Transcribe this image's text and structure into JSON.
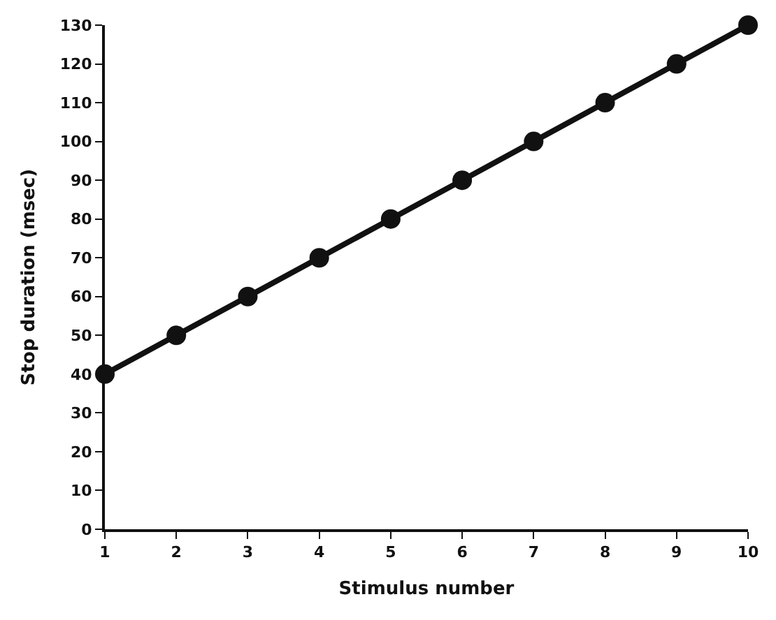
{
  "chart_data": {
    "type": "line",
    "xlabel": "Stimulus number",
    "ylabel": "Stop duration (msec)",
    "x": [
      1,
      2,
      3,
      4,
      5,
      6,
      7,
      8,
      9,
      10
    ],
    "series": [
      {
        "color": "#111111",
        "values": [
          40,
          50,
          60,
          70,
          80,
          90,
          100,
          110,
          120,
          130
        ]
      }
    ],
    "xlim": [
      1,
      10
    ],
    "xticks": [
      1,
      2,
      3,
      4,
      5,
      6,
      7,
      8,
      9,
      10
    ],
    "ylim": [
      0,
      130
    ],
    "yticks": [
      0,
      10,
      20,
      30,
      40,
      50,
      60,
      70,
      80,
      90,
      100,
      110,
      120,
      130
    ],
    "marker": "circle",
    "line_style": "solid"
  }
}
